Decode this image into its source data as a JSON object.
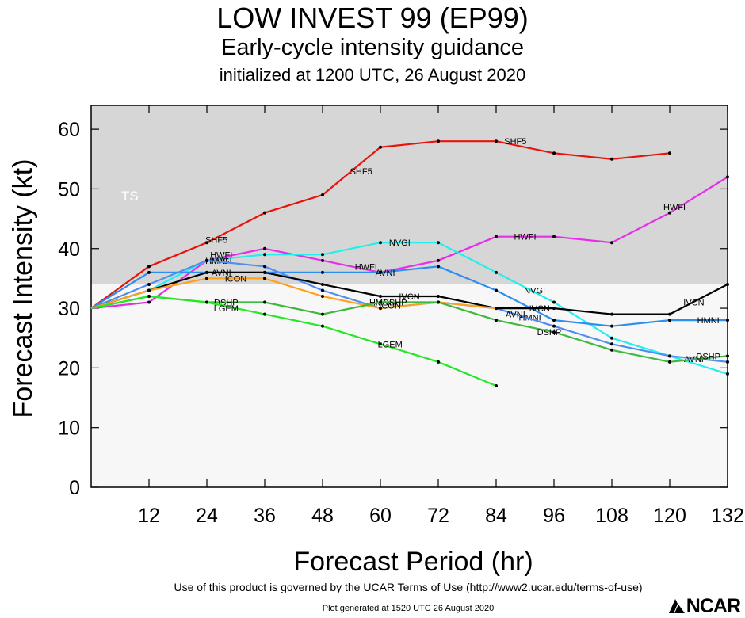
{
  "title": "LOW INVEST 99 (EP99)",
  "subtitle": "Early-cycle intensity guidance",
  "init_line": "initialized at 1200 UTC, 26 August 2020",
  "footer": {
    "terms": "Use of this product is governed by the UCAR Terms of Use (http://www2.ucar.edu/terms-of-use)",
    "generated": "Plot generated at 1520 UTC   26 August 2020",
    "logo_text": "NCAR"
  },
  "chart_data": {
    "type": "line",
    "xlabel": "Forecast Period (hr)",
    "ylabel": "Forecast Intensity (kt)",
    "xlim": [
      0,
      132
    ],
    "ylim": [
      0,
      64
    ],
    "xticks": [
      12,
      24,
      36,
      48,
      60,
      72,
      84,
      96,
      108,
      120,
      132
    ],
    "yticks": [
      0,
      10,
      20,
      30,
      40,
      50,
      60
    ],
    "bands": [
      {
        "label": "TS",
        "from": 34,
        "to": 64,
        "color": "#d6d6d6"
      },
      {
        "label": "",
        "from": 0,
        "to": 34,
        "color": "#f7f7f7"
      }
    ],
    "series": [
      {
        "name": "SHF5",
        "color": "#e8140c",
        "x": [
          0,
          12,
          24,
          36,
          48,
          60,
          72,
          84,
          96,
          108,
          120
        ],
        "y": [
          30,
          37,
          41,
          46,
          49,
          57,
          58,
          58,
          56,
          55,
          56
        ],
        "labels": [
          {
            "x": 26,
            "y": 41.5
          },
          {
            "x": 56,
            "y": 53
          },
          {
            "x": 88,
            "y": 58
          }
        ]
      },
      {
        "name": "HWFI",
        "color": "#e62ee6",
        "x": [
          0,
          12,
          24,
          36,
          48,
          60,
          72,
          84,
          96,
          108,
          120,
          132
        ],
        "y": [
          30,
          31,
          38,
          40,
          38,
          36,
          38,
          42,
          42,
          41,
          46,
          52
        ],
        "labels": [
          {
            "x": 27,
            "y": 39
          },
          {
            "x": 57,
            "y": 37
          },
          {
            "x": 90,
            "y": 42
          },
          {
            "x": 121,
            "y": 47
          }
        ]
      },
      {
        "name": "NVGI",
        "color": "#22eeee",
        "x": [
          0,
          12,
          24,
          36,
          48,
          60,
          72,
          84,
          96,
          108,
          120,
          132
        ],
        "y": [
          30,
          33,
          38,
          39,
          39,
          41,
          41,
          36,
          31,
          25,
          22,
          19
        ],
        "labels": [
          {
            "x": 27,
            "y": 38
          },
          {
            "x": 64,
            "y": 41
          },
          {
            "x": 92,
            "y": 33
          }
        ]
      },
      {
        "name": "HMNI",
        "color": "#2e8ef0",
        "x": [
          0,
          12,
          24,
          36,
          48,
          60,
          72,
          84,
          96,
          108,
          120,
          132
        ],
        "y": [
          30,
          36,
          36,
          36,
          36,
          36,
          37,
          33,
          28,
          27,
          28,
          28
        ],
        "labels": [
          {
            "x": 26,
            "y": 38
          },
          {
            "x": 60,
            "y": 31
          },
          {
            "x": 91,
            "y": 28.5
          },
          {
            "x": 128,
            "y": 28
          }
        ]
      },
      {
        "name": "AVNI",
        "color": "#4f8ef0",
        "x": [
          0,
          12,
          24,
          36,
          48,
          60,
          72,
          84,
          96,
          108,
          120,
          132
        ],
        "y": [
          30,
          34,
          38,
          37,
          33,
          30,
          31,
          30,
          27,
          24,
          22,
          21
        ],
        "labels": [
          {
            "x": 27,
            "y": 36
          },
          {
            "x": 61,
            "y": 36
          },
          {
            "x": 88,
            "y": 29
          },
          {
            "x": 125,
            "y": 21.5
          }
        ]
      },
      {
        "name": "IVCN",
        "color": "#000000",
        "x": [
          0,
          12,
          24,
          36,
          48,
          60,
          72,
          84,
          96,
          108,
          120,
          132
        ],
        "y": [
          30,
          33,
          36,
          36,
          34,
          32,
          32,
          30,
          30,
          29,
          29,
          34
        ],
        "labels": [
          {
            "x": 66,
            "y": 32
          },
          {
            "x": 93,
            "y": 30
          },
          {
            "x": 125,
            "y": 31
          }
        ]
      },
      {
        "name": "ICON",
        "color": "#ffa020",
        "x": [
          0,
          12,
          24,
          36,
          48,
          60,
          72,
          84
        ],
        "y": [
          30,
          33,
          35,
          35,
          32,
          30,
          31,
          30
        ],
        "labels": [
          {
            "x": 30,
            "y": 35
          },
          {
            "x": 62,
            "y": 30.5
          }
        ]
      },
      {
        "name": "DSHP",
        "color": "#3eb83e",
        "x": [
          0,
          12,
          24,
          36,
          48,
          60,
          72,
          84,
          96,
          108,
          120,
          132
        ],
        "y": [
          30,
          32,
          31,
          31,
          29,
          31,
          31,
          28,
          26,
          23,
          21,
          22
        ],
        "labels": [
          {
            "x": 28,
            "y": 31
          },
          {
            "x": 63,
            "y": 31
          },
          {
            "x": 95,
            "y": 26
          },
          {
            "x": 128,
            "y": 22
          }
        ]
      },
      {
        "name": "LGEM",
        "color": "#25e825",
        "x": [
          0,
          12,
          24,
          36,
          48,
          60,
          72,
          84
        ],
        "y": [
          30,
          32,
          31,
          29,
          27,
          24,
          21,
          17
        ],
        "labels": [
          {
            "x": 28,
            "y": 30
          },
          {
            "x": 62,
            "y": 24
          }
        ]
      }
    ]
  }
}
